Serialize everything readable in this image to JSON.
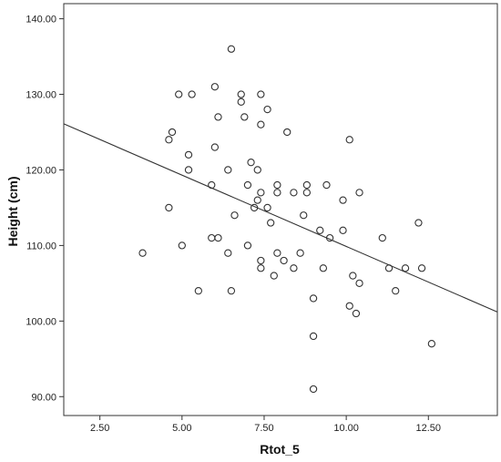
{
  "chart_data": {
    "type": "scatter",
    "title": "",
    "xlabel": "Rtot_5",
    "ylabel": "Height (cm)",
    "xlim": [
      1.4,
      14.6
    ],
    "ylim": [
      87.5,
      142.0
    ],
    "x_ticks": [
      "2.50",
      "5.00",
      "7.50",
      "10.00",
      "12.50"
    ],
    "x_tick_values": [
      2.5,
      5.0,
      7.5,
      10.0,
      12.5
    ],
    "y_ticks": [
      "90.00",
      "100.00",
      "110.00",
      "120.00",
      "130.00",
      "140.00"
    ],
    "y_tick_values": [
      90,
      100,
      110,
      120,
      130,
      140
    ],
    "grid": false,
    "fit_line": {
      "x": [
        1.4,
        14.6
      ],
      "y": [
        126.1,
        101.2
      ]
    },
    "points": [
      [
        3.8,
        109
      ],
      [
        4.6,
        124
      ],
      [
        4.6,
        115
      ],
      [
        4.7,
        125
      ],
      [
        4.9,
        130
      ],
      [
        5.0,
        110
      ],
      [
        5.2,
        122
      ],
      [
        5.2,
        120
      ],
      [
        5.3,
        130
      ],
      [
        5.5,
        104
      ],
      [
        5.9,
        118
      ],
      [
        5.9,
        111
      ],
      [
        6.0,
        131
      ],
      [
        6.0,
        123
      ],
      [
        6.1,
        127
      ],
      [
        6.1,
        111
      ],
      [
        6.4,
        120
      ],
      [
        6.4,
        109
      ],
      [
        6.5,
        104
      ],
      [
        6.5,
        136
      ],
      [
        6.6,
        114
      ],
      [
        6.8,
        130
      ],
      [
        6.8,
        129
      ],
      [
        6.9,
        127
      ],
      [
        7.0,
        118
      ],
      [
        7.0,
        110
      ],
      [
        7.1,
        121
      ],
      [
        7.2,
        115
      ],
      [
        7.3,
        120
      ],
      [
        7.3,
        116
      ],
      [
        7.4,
        130
      ],
      [
        7.4,
        126
      ],
      [
        7.4,
        117
      ],
      [
        7.4,
        108
      ],
      [
        7.4,
        107
      ],
      [
        7.6,
        128
      ],
      [
        7.6,
        115
      ],
      [
        7.7,
        113
      ],
      [
        7.8,
        106
      ],
      [
        7.9,
        118
      ],
      [
        7.9,
        117
      ],
      [
        7.9,
        109
      ],
      [
        8.1,
        108
      ],
      [
        8.2,
        125
      ],
      [
        8.4,
        117
      ],
      [
        8.4,
        107
      ],
      [
        8.6,
        109
      ],
      [
        8.7,
        114
      ],
      [
        8.8,
        118
      ],
      [
        8.8,
        117
      ],
      [
        9.0,
        103
      ],
      [
        9.0,
        91
      ],
      [
        9.0,
        98
      ],
      [
        9.2,
        112
      ],
      [
        9.3,
        107
      ],
      [
        9.4,
        118
      ],
      [
        9.5,
        111
      ],
      [
        9.9,
        116
      ],
      [
        9.9,
        112
      ],
      [
        10.1,
        124
      ],
      [
        10.1,
        102
      ],
      [
        10.2,
        106
      ],
      [
        10.3,
        101
      ],
      [
        10.4,
        117
      ],
      [
        10.4,
        105
      ],
      [
        11.1,
        111
      ],
      [
        11.3,
        107
      ],
      [
        11.5,
        104
      ],
      [
        11.8,
        107
      ],
      [
        12.2,
        113
      ],
      [
        12.3,
        107
      ],
      [
        12.6,
        97
      ]
    ]
  }
}
